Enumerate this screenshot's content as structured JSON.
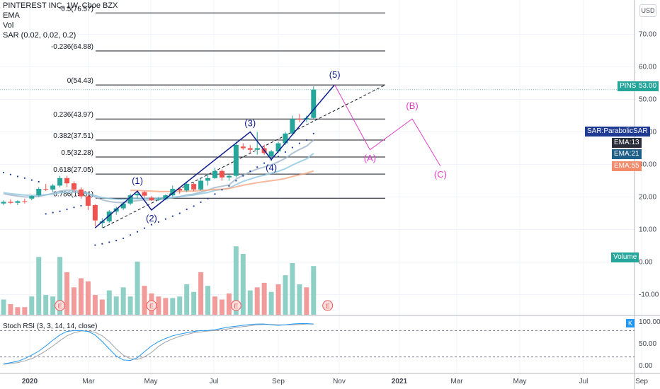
{
  "header": {
    "title": "PINTEREST INC, 1W, Cboe BZX",
    "ema": "EMA",
    "vol": "Vol",
    "sar": "SAR (0.02, 0.02, 0.2)",
    "stoch": "Stoch RSI (3, 3, 14, 14, close)"
  },
  "axis": {
    "currency": "USD",
    "price_ticks": [
      "70.00",
      "60.00",
      "50.00",
      "40.00",
      "30.00",
      "20.00",
      "10.00",
      "0.00",
      "-10.00"
    ],
    "stoch_ticks": [
      "100.00",
      "50.00",
      "0.00"
    ],
    "time_ticks": [
      "2020",
      "Mar",
      "May",
      "Jul",
      "Sep",
      "Nov",
      "2021",
      "Mar",
      "May",
      "Jul",
      "Sep"
    ]
  },
  "badges": {
    "pins": "PINS",
    "pins_price": "53.00",
    "sar": "SAR:ParabolicSAR",
    "ema13": "EMA:13",
    "ema21": "EMA:21",
    "ema55": "EMA:55",
    "volume": "Volume",
    "k": "K"
  },
  "colors": {
    "up": "#26a69a",
    "down": "#ef5350",
    "wave": "#0d1b8c",
    "projection": "#e040c8",
    "ema13": "#9fb4c8",
    "ema21": "#8ec6de",
    "ema55": "#f4a582",
    "stoch_k": "#2196f3",
    "stoch_d": "#a0a3a8"
  },
  "chart_data": {
    "type": "candlestick",
    "title": "PINTEREST INC, 1W, Cboe BZX",
    "ylim": [
      -14,
      77
    ],
    "fib_levels": [
      {
        "ratio": "-0.5",
        "price": 76.57
      },
      {
        "ratio": "-0.236",
        "price": 64.88
      },
      {
        "ratio": "0",
        "price": 54.43
      },
      {
        "ratio": "0.236",
        "price": 43.97
      },
      {
        "ratio": "0.382",
        "price": 37.51
      },
      {
        "ratio": "0.5",
        "price": 32.28
      },
      {
        "ratio": "0.618",
        "price": 27.05
      },
      {
        "ratio": "0.786",
        "price": 19.61
      }
    ],
    "candles": [
      [
        18,
        19,
        17.5,
        18.5
      ],
      [
        18.5,
        19.3,
        17.8,
        18.2
      ],
      [
        18.2,
        19,
        17.5,
        18.7
      ],
      [
        18.7,
        19.5,
        18,
        18.5
      ],
      [
        19.5,
        20.5,
        19,
        20.3
      ],
      [
        20.5,
        23,
        20,
        22.5
      ],
      [
        22.5,
        24,
        21.8,
        22.3
      ],
      [
        22.3,
        24,
        21.5,
        23.5
      ],
      [
        23.5,
        26.5,
        23,
        25.8
      ],
      [
        25.8,
        26.5,
        23,
        24.2
      ],
      [
        24.2,
        24.8,
        21.5,
        22.3
      ],
      [
        22.3,
        23,
        19.5,
        20.2
      ],
      [
        20.2,
        20.8,
        16,
        17.3
      ],
      [
        17.5,
        17.8,
        11,
        12.8
      ],
      [
        12,
        13.5,
        10.5,
        12.5
      ],
      [
        12.5,
        16,
        12,
        15.5
      ],
      [
        15.5,
        17,
        14.5,
        16.5
      ],
      [
        16.5,
        18.5,
        16,
        18
      ],
      [
        18,
        21,
        17.5,
        20.5
      ],
      [
        20.5,
        21.5,
        19.5,
        21
      ],
      [
        21.5,
        21.8,
        19.8,
        20.4
      ],
      [
        19.8,
        20.3,
        18.8,
        19
      ],
      [
        19.2,
        20,
        18.8,
        19.4
      ],
      [
        19.4,
        20.8,
        19,
        20.5
      ],
      [
        20.5,
        23.5,
        20,
        22.5
      ],
      [
        22.5,
        23,
        21,
        22
      ],
      [
        22,
        24.5,
        21.5,
        24
      ],
      [
        24,
        24.5,
        21.8,
        22.3
      ],
      [
        22.3,
        26,
        22,
        25
      ],
      [
        25,
        27,
        23.5,
        25.8
      ],
      [
        25.8,
        29,
        25.5,
        28
      ],
      [
        28,
        28.5,
        25,
        26
      ],
      [
        26,
        27,
        25,
        26.5
      ],
      [
        26.5,
        37,
        26,
        36
      ],
      [
        35.5,
        36.5,
        34.5,
        35
      ],
      [
        35,
        36,
        33.5,
        34.5
      ],
      [
        34.5,
        40,
        33,
        35
      ],
      [
        35,
        36,
        33,
        33.5
      ],
      [
        32.5,
        34.5,
        31.5,
        34
      ],
      [
        34,
        37,
        33.5,
        36.5
      ],
      [
        36.5,
        40,
        36,
        39.5
      ],
      [
        39.5,
        45,
        39,
        44
      ],
      [
        44,
        45.5,
        43,
        43.8
      ],
      [
        43.8,
        45,
        43,
        44.3
      ],
      [
        44.3,
        54,
        44,
        53
      ]
    ],
    "volume": [
      {
        "value": 10,
        "up": true
      },
      {
        "value": 7,
        "up": false
      },
      {
        "value": 5,
        "up": false
      },
      {
        "value": 5,
        "up": false
      },
      {
        "value": 12,
        "up": true
      },
      {
        "value": 38,
        "up": true
      },
      {
        "value": 13,
        "up": true
      },
      {
        "value": 12,
        "up": true
      },
      {
        "value": 38,
        "up": true
      },
      {
        "value": 28,
        "up": false
      },
      {
        "value": 18,
        "up": false
      },
      {
        "value": 24,
        "up": false
      },
      {
        "value": 22,
        "up": false
      },
      {
        "value": 13,
        "up": false
      },
      {
        "value": 10,
        "up": false
      },
      {
        "value": 16,
        "up": true
      },
      {
        "value": 12,
        "up": true
      },
      {
        "value": 18,
        "up": true
      },
      {
        "value": 12,
        "up": true
      },
      {
        "value": 35,
        "up": true
      },
      {
        "value": 19,
        "up": false
      },
      {
        "value": 14,
        "up": false
      },
      {
        "value": 12,
        "up": false
      },
      {
        "value": 11,
        "up": false
      },
      {
        "value": 11,
        "up": true
      },
      {
        "value": 12,
        "up": true
      },
      {
        "value": 20,
        "up": true
      },
      {
        "value": 15,
        "up": true
      },
      {
        "value": 28,
        "up": false
      },
      {
        "value": 19,
        "up": true
      },
      {
        "value": 12,
        "up": false
      },
      {
        "value": 10,
        "up": false
      },
      {
        "value": 14,
        "up": false
      },
      {
        "value": 45,
        "up": true
      },
      {
        "value": 40,
        "up": true
      },
      {
        "value": 16,
        "up": true
      },
      {
        "value": 18,
        "up": false
      },
      {
        "value": 21,
        "up": false
      },
      {
        "value": 15,
        "up": true
      },
      {
        "value": 20,
        "up": false
      },
      {
        "value": 26,
        "up": true
      },
      {
        "value": 34,
        "up": true
      },
      {
        "value": 20,
        "up": true
      },
      {
        "value": 18,
        "up": false
      },
      {
        "value": 32,
        "up": true
      }
    ],
    "ema13": [
      21,
      20.6,
      20.3,
      20,
      20,
      20.2,
      20.6,
      21.1,
      21.8,
      22.1,
      22,
      21.7,
      21.1,
      20,
      19.1,
      18.6,
      18.3,
      18.3,
      18.6,
      18.9,
      19.1,
      19.1,
      19.2,
      19.4,
      19.8,
      20.1,
      20.6,
      20.9,
      21.5,
      22.1,
      22.9,
      23.3,
      23.7,
      25.5,
      26.7,
      27.7,
      28.6,
      29.2,
      29.9,
      30.8,
      31.9,
      33.4,
      34.6,
      35.6,
      37.5
    ],
    "ema21": [
      21.3,
      21,
      20.8,
      20.6,
      20.5,
      20.5,
      20.7,
      20.9,
      21.3,
      21.5,
      21.5,
      21.3,
      21,
      20.4,
      19.8,
      19.5,
      19.3,
      19.2,
      19.4,
      19.5,
      19.6,
      19.6,
      19.6,
      19.7,
      19.9,
      20.1,
      20.4,
      20.6,
      21,
      21.4,
      22,
      22.3,
      22.7,
      23.8,
      24.8,
      25.5,
      26.2,
      26.7,
      27.3,
      27.9,
      28.7,
      29.8,
      30.8,
      31.7,
      33.4
    ],
    "ema55": [
      null,
      null,
      null,
      null,
      null,
      null,
      null,
      null,
      null,
      null,
      null,
      null,
      null,
      null,
      null,
      null,
      null,
      null,
      22,
      22,
      21.9,
      21.8,
      21.7,
      21.7,
      21.7,
      21.7,
      21.8,
      21.8,
      22,
      22.1,
      22.3,
      22.4,
      22.6,
      23.1,
      23.6,
      24,
      24.4,
      24.7,
      25,
      25.3,
      25.7,
      26.3,
      26.8,
      27.3,
      28
    ],
    "sar": [
      27.5,
      26.9,
      26.3,
      25.8,
      25.2,
      24.7,
      14.8,
      15.2,
      15.6,
      16.2,
      16.8,
      17.3,
      17.8,
      5.2,
      5.6,
      6.1,
      6.6,
      7.3,
      8.3,
      9.3,
      10.4,
      11.5,
      12.3,
      13.2,
      14.1,
      15,
      16.2,
      17.2,
      18.4,
      19.5,
      20.9,
      22.2,
      23.4,
      25,
      26.5,
      27.9,
      29.2,
      30.4,
      31.4,
      32.4,
      33.8,
      35.2,
      36.5,
      37.5,
      39.5
    ],
    "wave_points": [
      {
        "label": "(1)",
        "i": 19,
        "price": 21.8
      },
      {
        "label": "(2)",
        "i": 21,
        "price": 16
      },
      {
        "label": "(3)",
        "i": 35,
        "price": 40
      },
      {
        "label": "(4)",
        "i": 38,
        "price": 31.5
      },
      {
        "label": "(5)",
        "i": 47,
        "price": 54.5
      }
    ],
    "wave_start": {
      "i": 13,
      "price": 10.5
    },
    "projection_points": [
      {
        "label": "(A)",
        "i": 52,
        "price": 34.5
      },
      {
        "label": "(B)",
        "i": 58,
        "price": 44
      },
      {
        "label": "(C)",
        "i": 62,
        "price": 29.5
      }
    ],
    "stoch_k": [
      4,
      7,
      10,
      16,
      24,
      33,
      45,
      58,
      70,
      78,
      80,
      80,
      78,
      70,
      55,
      38,
      22,
      13,
      12,
      18,
      32,
      45,
      55,
      62,
      68,
      72,
      75,
      78,
      80,
      80,
      82,
      85,
      88,
      90,
      92,
      94,
      95,
      95,
      93,
      92,
      93,
      95,
      96,
      96,
      95
    ],
    "stoch_d": [
      3,
      5,
      7,
      11,
      16,
      24,
      34,
      45,
      57,
      68,
      75,
      79,
      79,
      76,
      68,
      55,
      38,
      24,
      16,
      14,
      20,
      30,
      44,
      54,
      61,
      67,
      71,
      75,
      77,
      79,
      80,
      82,
      84,
      87,
      89,
      91,
      93,
      94,
      94,
      93,
      93,
      93,
      94,
      95,
      95
    ],
    "earnings_markers": [
      "E",
      "E",
      "E",
      "E"
    ]
  }
}
